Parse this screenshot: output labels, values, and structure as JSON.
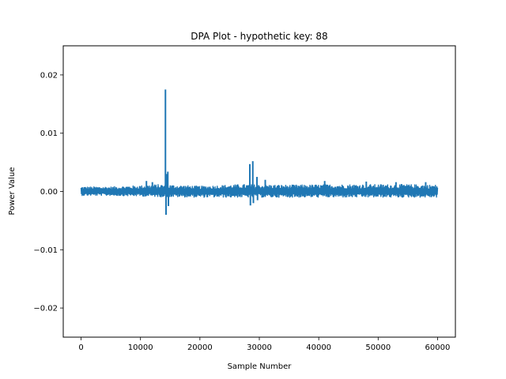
{
  "chart_data": {
    "type": "line",
    "title": "DPA Plot - hypothetic key: 88",
    "xlabel": "Sample Number",
    "ylabel": "Power Value",
    "xlim": [
      -3000,
      63000
    ],
    "ylim": [
      -0.025,
      0.025
    ],
    "grid": false,
    "x_ticks": [
      0,
      10000,
      20000,
      30000,
      40000,
      50000,
      60000
    ],
    "x_tick_labels": [
      "0",
      "10000",
      "20000",
      "30000",
      "40000",
      "50000",
      "60000"
    ],
    "y_ticks": [
      -0.02,
      -0.01,
      0.0,
      0.01,
      0.02
    ],
    "y_tick_labels": [
      "−0.02",
      "−0.01",
      "0.00",
      "0.01",
      "0.02"
    ],
    "series": [
      {
        "color": "#1f77b4",
        "x_range": [
          0,
          60000
        ],
        "noise_envelope": [
          {
            "x": 0,
            "y": [
              -0.0007,
              0.0008
            ]
          },
          {
            "x": 5000,
            "y": [
              -0.0007,
              0.0008
            ]
          },
          {
            "x": 10000,
            "y": [
              -0.0008,
              0.001
            ]
          },
          {
            "x": 13000,
            "y": [
              -0.0009,
              0.0012
            ]
          },
          {
            "x": 20000,
            "y": [
              -0.001,
              0.0009
            ]
          },
          {
            "x": 27000,
            "y": [
              -0.001,
              0.0012
            ]
          },
          {
            "x": 35000,
            "y": [
              -0.001,
              0.0011
            ]
          },
          {
            "x": 45000,
            "y": [
              -0.001,
              0.0012
            ]
          },
          {
            "x": 55000,
            "y": [
              -0.001,
              0.0012
            ]
          },
          {
            "x": 60000,
            "y": [
              -0.001,
              0.0011
            ]
          }
        ],
        "spikes": [
          {
            "x": 14200,
            "y": 0.0175
          },
          {
            "x": 14300,
            "y": -0.004
          },
          {
            "x": 14400,
            "y": 0.003
          },
          {
            "x": 14600,
            "y": 0.0034
          },
          {
            "x": 14700,
            "y": -0.0025
          },
          {
            "x": 28400,
            "y": 0.0047
          },
          {
            "x": 28500,
            "y": -0.0024
          },
          {
            "x": 28900,
            "y": 0.0052
          },
          {
            "x": 29000,
            "y": -0.002
          },
          {
            "x": 29600,
            "y": 0.0025
          },
          {
            "x": 29700,
            "y": -0.0015
          },
          {
            "x": 11000,
            "y": 0.0018
          },
          {
            "x": 12000,
            "y": 0.0016
          },
          {
            "x": 31000,
            "y": 0.002
          },
          {
            "x": 41000,
            "y": 0.0018
          },
          {
            "x": 48000,
            "y": 0.0017
          },
          {
            "x": 53000,
            "y": 0.0016
          },
          {
            "x": 58000,
            "y": 0.0016
          }
        ]
      }
    ]
  }
}
